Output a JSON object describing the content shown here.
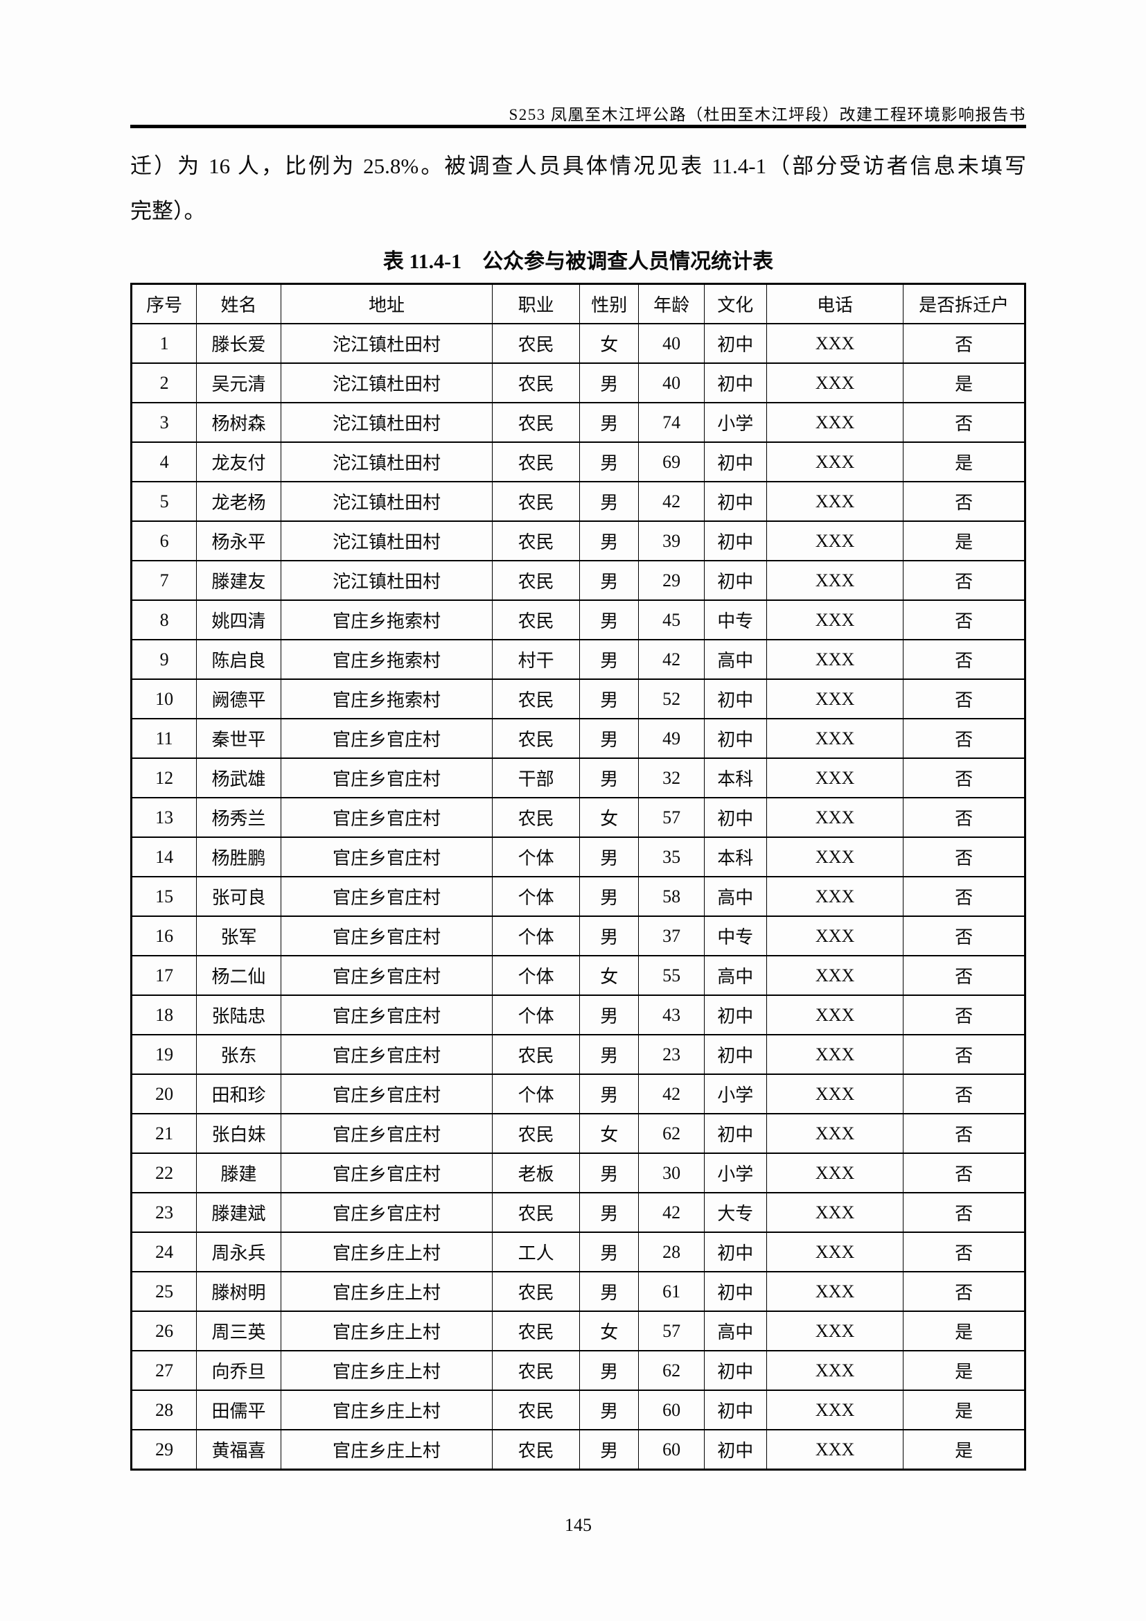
{
  "colors": {
    "ink": "#0a0a0a",
    "paper": "#fdfdfd",
    "border": "#000000"
  },
  "header": {
    "title": "S253 凤凰至木江坪公路（杜田至木江坪段）改建工程环境影响报告书"
  },
  "paragraph": {
    "line1": "迁）为 16 人，比例为 25.8%。被调查人员具体情况见表 11.4-1（部分受访者信息未填写",
    "line2": "完整）。"
  },
  "table": {
    "title": "表 11.4-1　公众参与被调查人员情况统计表",
    "columns": [
      "序号",
      "姓名",
      "地址",
      "职业",
      "性别",
      "年龄",
      "文化",
      "电话",
      "是否拆迁户"
    ],
    "column_keys": [
      "index",
      "name",
      "address",
      "occupation",
      "gender",
      "age",
      "education",
      "phone",
      "is-relocated"
    ],
    "rows": [
      [
        "1",
        "滕长爱",
        "沱江镇杜田村",
        "农民",
        "女",
        "40",
        "初中",
        "XXX",
        "否"
      ],
      [
        "2",
        "吴元清",
        "沱江镇杜田村",
        "农民",
        "男",
        "40",
        "初中",
        "XXX",
        "是"
      ],
      [
        "3",
        "杨树森",
        "沱江镇杜田村",
        "农民",
        "男",
        "74",
        "小学",
        "XXX",
        "否"
      ],
      [
        "4",
        "龙友付",
        "沱江镇杜田村",
        "农民",
        "男",
        "69",
        "初中",
        "XXX",
        "是"
      ],
      [
        "5",
        "龙老杨",
        "沱江镇杜田村",
        "农民",
        "男",
        "42",
        "初中",
        "XXX",
        "否"
      ],
      [
        "6",
        "杨永平",
        "沱江镇杜田村",
        "农民",
        "男",
        "39",
        "初中",
        "XXX",
        "是"
      ],
      [
        "7",
        "滕建友",
        "沱江镇杜田村",
        "农民",
        "男",
        "29",
        "初中",
        "XXX",
        "否"
      ],
      [
        "8",
        "姚四清",
        "官庄乡拖索村",
        "农民",
        "男",
        "45",
        "中专",
        "XXX",
        "否"
      ],
      [
        "9",
        "陈启良",
        "官庄乡拖索村",
        "村干",
        "男",
        "42",
        "高中",
        "XXX",
        "否"
      ],
      [
        "10",
        "阙德平",
        "官庄乡拖索村",
        "农民",
        "男",
        "52",
        "初中",
        "XXX",
        "否"
      ],
      [
        "11",
        "秦世平",
        "官庄乡官庄村",
        "农民",
        "男",
        "49",
        "初中",
        "XXX",
        "否"
      ],
      [
        "12",
        "杨武雄",
        "官庄乡官庄村",
        "干部",
        "男",
        "32",
        "本科",
        "XXX",
        "否"
      ],
      [
        "13",
        "杨秀兰",
        "官庄乡官庄村",
        "农民",
        "女",
        "57",
        "初中",
        "XXX",
        "否"
      ],
      [
        "14",
        "杨胜鹏",
        "官庄乡官庄村",
        "个体",
        "男",
        "35",
        "本科",
        "XXX",
        "否"
      ],
      [
        "15",
        "张可良",
        "官庄乡官庄村",
        "个体",
        "男",
        "58",
        "高中",
        "XXX",
        "否"
      ],
      [
        "16",
        "张军",
        "官庄乡官庄村",
        "个体",
        "男",
        "37",
        "中专",
        "XXX",
        "否"
      ],
      [
        "17",
        "杨二仙",
        "官庄乡官庄村",
        "个体",
        "女",
        "55",
        "高中",
        "XXX",
        "否"
      ],
      [
        "18",
        "张陆忠",
        "官庄乡官庄村",
        "个体",
        "男",
        "43",
        "初中",
        "XXX",
        "否"
      ],
      [
        "19",
        "张东",
        "官庄乡官庄村",
        "农民",
        "男",
        "23",
        "初中",
        "XXX",
        "否"
      ],
      [
        "20",
        "田和珍",
        "官庄乡官庄村",
        "个体",
        "男",
        "42",
        "小学",
        "XXX",
        "否"
      ],
      [
        "21",
        "张白妹",
        "官庄乡官庄村",
        "农民",
        "女",
        "62",
        "初中",
        "XXX",
        "否"
      ],
      [
        "22",
        "滕建",
        "官庄乡官庄村",
        "老板",
        "男",
        "30",
        "小学",
        "XXX",
        "否"
      ],
      [
        "23",
        "滕建斌",
        "官庄乡官庄村",
        "农民",
        "男",
        "42",
        "大专",
        "XXX",
        "否"
      ],
      [
        "24",
        "周永兵",
        "官庄乡庄上村",
        "工人",
        "男",
        "28",
        "初中",
        "XXX",
        "否"
      ],
      [
        "25",
        "滕树明",
        "官庄乡庄上村",
        "农民",
        "男",
        "61",
        "初中",
        "XXX",
        "否"
      ],
      [
        "26",
        "周三英",
        "官庄乡庄上村",
        "农民",
        "女",
        "57",
        "高中",
        "XXX",
        "是"
      ],
      [
        "27",
        "向乔旦",
        "官庄乡庄上村",
        "农民",
        "男",
        "62",
        "初中",
        "XXX",
        "是"
      ],
      [
        "28",
        "田儒平",
        "官庄乡庄上村",
        "农民",
        "男",
        "60",
        "初中",
        "XXX",
        "是"
      ],
      [
        "29",
        "黄福喜",
        "官庄乡庄上村",
        "农民",
        "男",
        "60",
        "初中",
        "XXX",
        "是"
      ]
    ]
  },
  "footer": {
    "page_number": "145"
  }
}
